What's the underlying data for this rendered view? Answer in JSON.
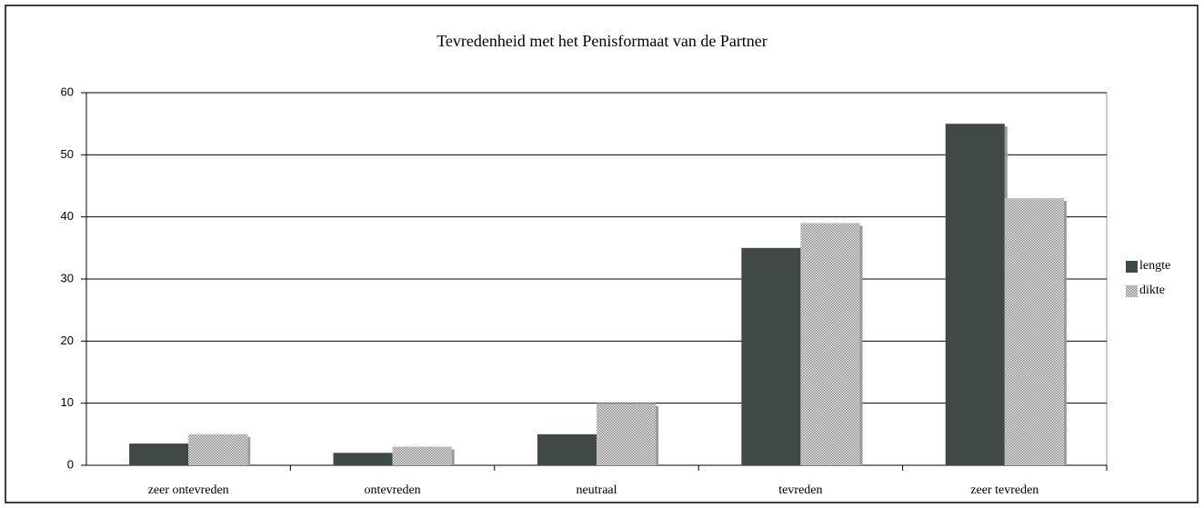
{
  "chart_data": {
    "type": "bar",
    "title": "Tevredenheid met het Penisformaat van de Partner",
    "categories": [
      "zeer ontevreden",
      "ontevreden",
      "neutraal",
      "tevreden",
      "zeer tevreden"
    ],
    "series": [
      {
        "name": "lengte",
        "color": "#3f4a45",
        "values": [
          3.5,
          2,
          5,
          35,
          55
        ]
      },
      {
        "name": "dikte",
        "color": "#8c8c8c",
        "pattern": "checker",
        "values": [
          5,
          3,
          10,
          39,
          43
        ]
      }
    ],
    "ylim": [
      0,
      60
    ],
    "yticks": [
      0,
      10,
      20,
      30,
      40,
      50,
      60
    ],
    "grid": true,
    "legend": "right"
  }
}
